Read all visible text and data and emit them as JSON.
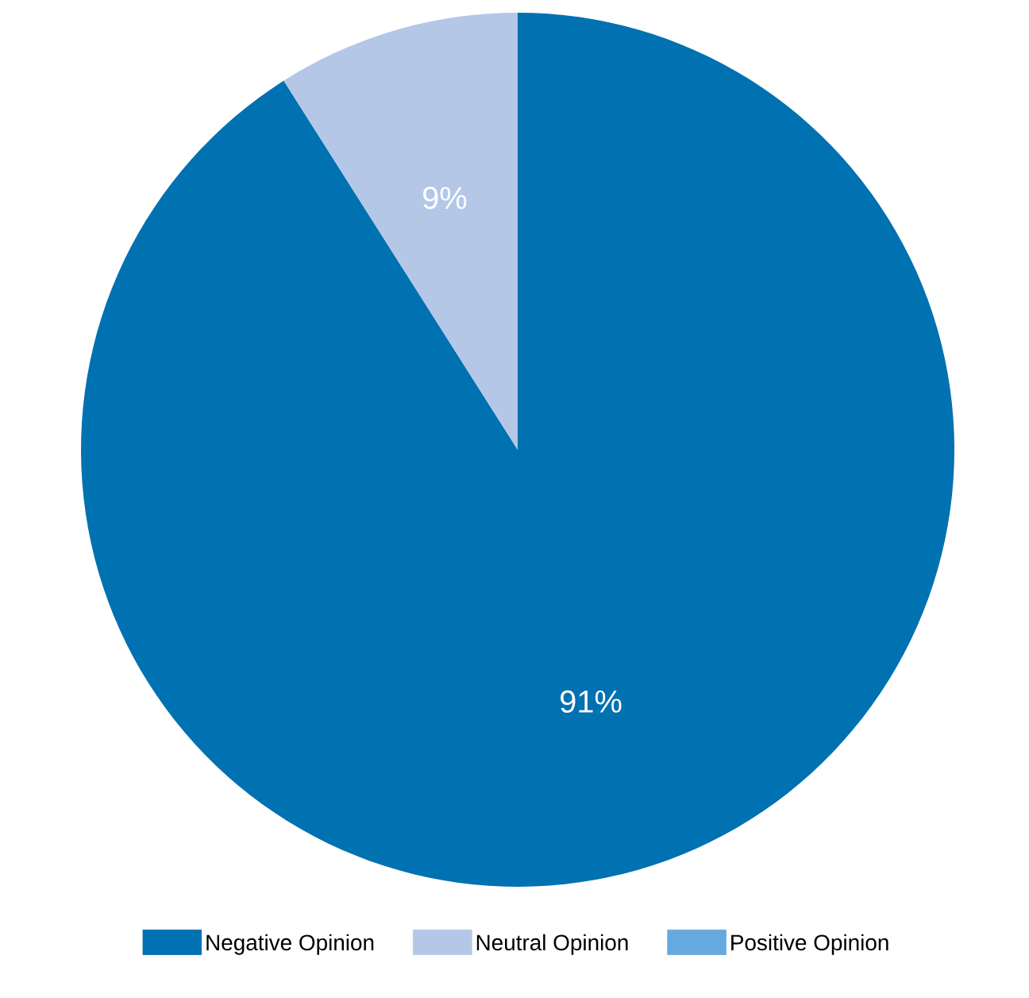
{
  "chart_data": {
    "type": "pie",
    "categories": [
      "Negative Opinion",
      "Neutral Opinion",
      "Positive Opinion"
    ],
    "values": [
      91,
      9,
      0
    ],
    "colors": [
      "#0071b1",
      "#b4c7e7",
      "#65a9df"
    ],
    "value_labels": [
      "91%",
      "9%",
      null
    ],
    "legend": "bottom"
  }
}
